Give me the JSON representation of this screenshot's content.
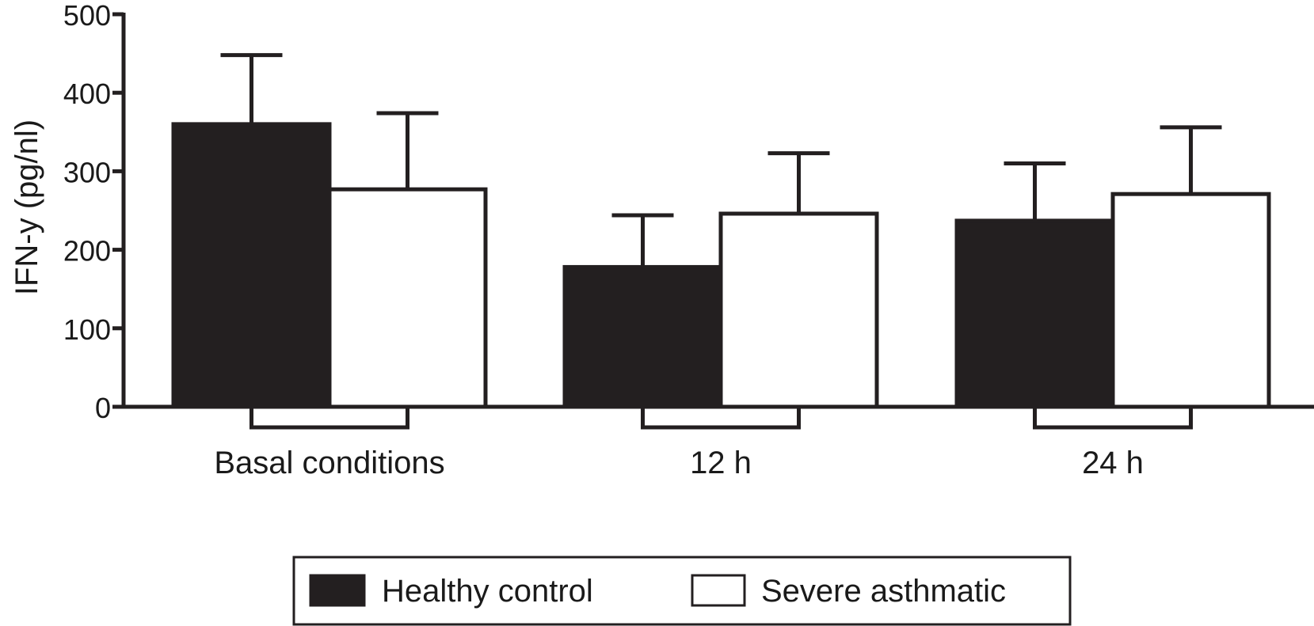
{
  "chart_data": {
    "type": "bar",
    "title": "",
    "xlabel": "",
    "ylabel": "IFN-y (pg/nl)",
    "ylim": [
      0,
      500
    ],
    "yticks": [
      0,
      100,
      200,
      300,
      400,
      500
    ],
    "grid": false,
    "categories": [
      "Basal conditions",
      "12 h",
      "24 h"
    ],
    "series": [
      {
        "name": "Healthy control",
        "fill": "#231f20",
        "values": [
          360,
          178,
          237
        ],
        "error_upper": [
          448,
          244,
          310
        ]
      },
      {
        "name": "Severe asthmatic",
        "fill": "#ffffff",
        "values": [
          277,
          246,
          271
        ],
        "error_upper": [
          374,
          323,
          356
        ]
      }
    ],
    "pairing_bracket": true,
    "legend_position": "bottom-center"
  },
  "colors": {
    "ink": "#231f20",
    "background": "#ffffff"
  }
}
